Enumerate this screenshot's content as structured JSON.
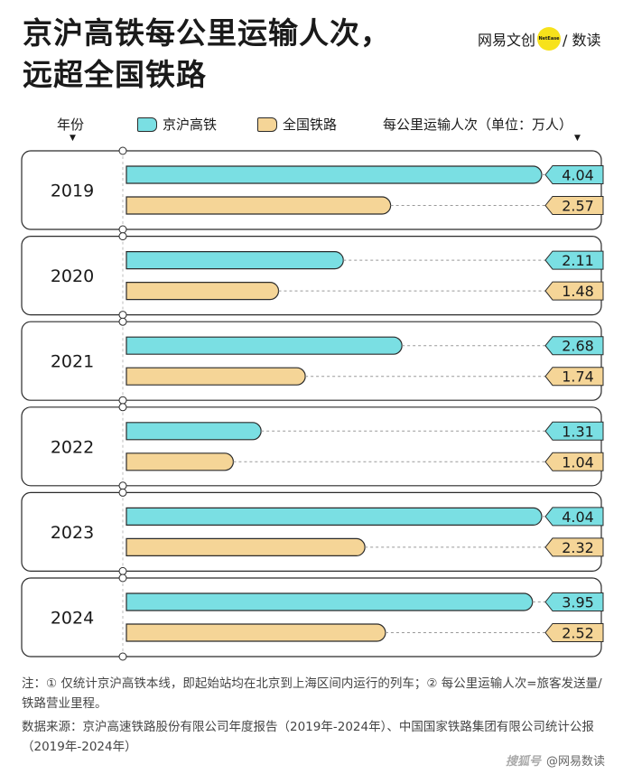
{
  "title_line1": "京沪高铁每公里运输人次，",
  "title_line2": "远超全国铁路",
  "brand": {
    "left": "网易文创",
    "dot": "NetEase",
    "right": "/ 数读"
  },
  "legend": {
    "year_header": "年份",
    "series1": "京沪高铁",
    "series2": "全国铁路",
    "value_header": "每公里运输人次（单位：万人）"
  },
  "colors": {
    "series1": "#7adfe3",
    "series2": "#f5d597",
    "outline": "#2b2b2b"
  },
  "chart_data": {
    "type": "bar",
    "orientation": "horizontal",
    "categories": [
      "2019",
      "2020",
      "2021",
      "2022",
      "2023",
      "2024"
    ],
    "series": [
      {
        "name": "京沪高铁",
        "values": [
          4.04,
          2.11,
          2.68,
          1.31,
          4.04,
          3.95
        ]
      },
      {
        "name": "全国铁路",
        "values": [
          2.57,
          1.48,
          1.74,
          1.04,
          2.32,
          2.52
        ]
      }
    ],
    "value_labels": [
      [
        "4.04",
        "2.11",
        "2.68",
        "1.31",
        "4.04",
        "3.95"
      ],
      [
        "2.57",
        "1.48",
        "1.74",
        "1.04",
        "2.32",
        "2.52"
      ]
    ],
    "xlim": [
      0,
      4.04
    ],
    "unit": "万人"
  },
  "notes": {
    "note": "注：① 仅统计京沪高铁本线，即起始站均在北京到上海区间内运行的列车；② 每公里运输人次=旅客发送量/铁路营业里程。",
    "source": "数据来源：京沪高速铁路股份有限公司年度报告（2019年-2024年）、中国国家铁路集团有限公司统计公报（2019年-2024年）"
  },
  "watermark": {
    "platform": "搜狐号",
    "author": "@网易数读"
  }
}
